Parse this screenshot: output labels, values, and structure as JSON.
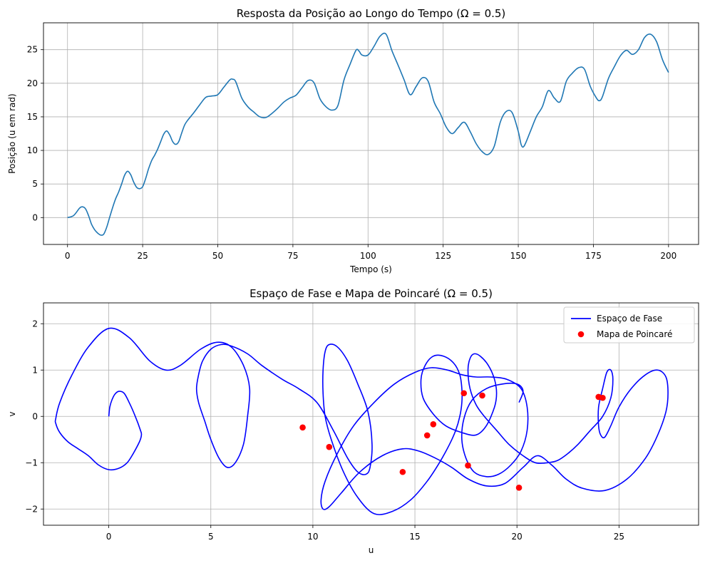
{
  "chart_data": [
    {
      "type": "line",
      "title": "Resposta da Posição ao Longo do Tempo (Ω = 0.5)",
      "xlabel": "Tempo (s)",
      "ylabel": "Posição (u em rad)",
      "xlim": [
        -8,
        210
      ],
      "ylim": [
        -4,
        29
      ],
      "xticks": [
        0,
        25,
        50,
        75,
        100,
        125,
        150,
        175,
        200
      ],
      "yticks": [
        0,
        5,
        10,
        15,
        20,
        25
      ],
      "grid": true,
      "series": [
        {
          "color": "#1f77b4",
          "x": [
            0,
            2,
            4,
            5,
            6,
            7,
            8,
            9,
            10,
            11,
            12,
            13,
            14,
            15,
            16,
            17,
            18,
            19,
            20,
            21,
            22,
            23,
            24,
            25,
            26,
            27,
            28,
            29,
            30,
            31,
            32,
            33,
            34,
            35,
            36,
            37,
            38,
            39,
            40,
            42,
            44,
            46,
            48,
            50,
            52,
            54,
            55,
            56,
            58,
            60,
            62,
            64,
            66,
            68,
            70,
            72,
            74,
            76,
            78,
            80,
            82,
            84,
            86,
            88,
            90,
            92,
            94,
            96,
            97,
            98,
            100,
            102,
            104,
            106,
            108,
            110,
            112,
            114,
            116,
            118,
            120,
            122,
            124,
            126,
            128,
            130,
            132,
            134,
            136,
            138,
            140,
            142,
            144,
            146,
            148,
            150,
            151,
            152,
            154,
            156,
            158,
            160,
            162,
            164,
            166,
            168,
            170,
            172,
            174,
            176,
            177,
            178,
            180,
            182,
            184,
            186,
            188,
            190,
            192,
            194,
            196,
            198,
            200
          ],
          "y": [
            0,
            0.3,
            1.4,
            1.6,
            1.3,
            0.3,
            -1.0,
            -1.8,
            -2.3,
            -2.6,
            -2.5,
            -1.5,
            0.0,
            1.5,
            2.8,
            3.8,
            5.0,
            6.3,
            6.9,
            6.4,
            5.3,
            4.5,
            4.3,
            4.6,
            5.8,
            7.3,
            8.5,
            9.3,
            10.2,
            11.3,
            12.4,
            12.9,
            12.3,
            11.3,
            10.9,
            11.3,
            12.6,
            13.8,
            14.5,
            15.6,
            16.8,
            17.9,
            18.1,
            18.3,
            19.4,
            20.5,
            20.6,
            20.2,
            17.8,
            16.5,
            15.7,
            15.0,
            14.9,
            15.5,
            16.3,
            17.2,
            17.8,
            18.2,
            19.3,
            20.4,
            20.1,
            17.7,
            16.5,
            16.0,
            16.7,
            20.5,
            22.8,
            24.9,
            24.8,
            24.2,
            24.2,
            25.5,
            27.0,
            27.3,
            24.8,
            22.7,
            20.5,
            18.3,
            19.5,
            20.8,
            20.3,
            17.2,
            15.5,
            13.5,
            12.5,
            13.4,
            14.2,
            12.8,
            11.0,
            9.8,
            9.4,
            10.6,
            14.2,
            15.8,
            15.6,
            12.8,
            10.8,
            10.7,
            12.8,
            15.0,
            16.5,
            18.9,
            17.8,
            17.3,
            20.3,
            21.5,
            22.3,
            22.1,
            19.5,
            17.8,
            17.4,
            18.0,
            20.7,
            22.5,
            24.1,
            24.9,
            24.3,
            25.0,
            26.8,
            27.3,
            26.2,
            23.5,
            21.6
          ]
        }
      ]
    },
    {
      "type": "line",
      "title": "Espaço de Fase e Mapa de Poincaré (Ω = 0.5)",
      "xlabel": "u",
      "ylabel": "v",
      "xlim": [
        -3.2,
        28.9
      ],
      "ylim": [
        -2.35,
        2.45
      ],
      "xticks": [
        0,
        5,
        10,
        15,
        20,
        25
      ],
      "yticks": [
        -2,
        -1,
        0,
        1,
        2
      ],
      "grid": true,
      "legend": "top-right",
      "series": [
        {
          "name": "Espaço de Fase",
          "type": "line",
          "color": "#0000ff",
          "x": [
            0,
            0.05,
            0.15,
            0.3,
            0.5,
            0.75,
            1.0,
            1.3,
            1.55,
            1.6,
            1.5,
            1.2,
            0.9,
            0.5,
            0.0,
            -0.5,
            -1.0,
            -1.5,
            -2.0,
            -2.4,
            -2.6,
            -2.6,
            -2.4,
            -1.8,
            -1.0,
            0.0,
            1.0,
            2.0,
            2.8,
            3.5,
            4.5,
            5.3,
            6.0,
            6.6,
            6.9,
            6.8,
            6.6,
            6.2,
            5.8,
            5.4,
            5.0,
            4.7,
            4.4,
            4.3,
            4.4,
            4.6,
            5.0,
            5.5,
            6.0,
            6.8,
            7.5,
            8.5,
            9.3,
            10.2,
            11.0,
            11.7,
            12.2,
            12.6,
            12.8,
            12.9,
            12.7,
            12.2,
            11.7,
            11.2,
            10.8,
            10.6,
            10.5,
            10.5,
            10.6,
            10.9,
            11.5,
            12.2,
            13.0,
            13.9,
            14.8,
            15.6,
            16.2,
            16.7,
            17.0,
            17.2,
            17.3,
            17.3,
            17.2,
            16.9,
            16.4,
            15.9,
            15.5,
            15.3,
            15.4,
            15.9,
            16.5,
            17.3,
            18.0,
            18.5,
            18.9,
            19.0,
            18.9,
            18.6,
            18.2,
            17.9,
            17.7,
            17.6,
            17.7,
            18.0,
            18.4,
            19.0,
            19.6,
            20.3,
            20.9,
            21.5,
            22.0,
            22.5,
            23.0,
            23.6,
            24.2,
            24.6,
            24.7,
            24.6,
            24.4,
            24.2,
            24.0,
            24.0,
            24.1,
            24.3,
            24.6,
            25.0,
            25.6,
            26.3,
            26.9,
            27.3,
            27.4,
            27.3,
            26.9,
            26.3,
            25.4,
            24.3,
            23.2,
            22.4,
            21.7,
            21.0,
            20.3,
            19.4,
            18.5,
            17.6,
            16.8,
            16.0,
            15.2,
            14.4,
            13.4,
            12.3,
            11.4,
            10.8,
            10.5,
            10.4,
            10.6,
            11.2,
            12.0,
            13.0,
            14.0,
            15.0,
            15.8,
            16.6,
            17.3,
            18.0,
            18.7,
            19.5,
            20.2,
            20.5,
            20.5,
            20.2,
            19.7,
            19.1,
            18.5,
            17.9,
            17.5,
            17.3,
            17.4,
            17.8,
            18.5,
            19.3,
            20.0,
            20.3,
            20.1
          ],
          "y": [
            0,
            0.2,
            0.35,
            0.48,
            0.54,
            0.5,
            0.3,
            0.0,
            -0.3,
            -0.4,
            -0.55,
            -0.8,
            -1.0,
            -1.12,
            -1.15,
            -1.05,
            -0.85,
            -0.7,
            -0.55,
            -0.35,
            -0.15,
            -0.05,
            0.3,
            0.9,
            1.5,
            1.9,
            1.7,
            1.2,
            1.0,
            1.1,
            1.45,
            1.6,
            1.5,
            1.1,
            0.6,
            0.0,
            -0.6,
            -1.0,
            -1.1,
            -0.9,
            -0.5,
            -0.1,
            0.3,
            0.6,
            0.9,
            1.2,
            1.45,
            1.55,
            1.52,
            1.35,
            1.1,
            0.8,
            0.6,
            0.3,
            -0.3,
            -0.9,
            -1.2,
            -1.25,
            -1.1,
            -0.6,
            0.1,
            0.7,
            1.2,
            1.5,
            1.55,
            1.4,
            1.0,
            0.5,
            0.0,
            -0.5,
            -1.2,
            -1.75,
            -2.1,
            -2.05,
            -1.8,
            -1.4,
            -1.0,
            -0.6,
            -0.3,
            0.0,
            0.3,
            0.6,
            0.9,
            1.15,
            1.3,
            1.3,
            1.1,
            0.8,
            0.4,
            0.05,
            -0.2,
            -0.35,
            -0.4,
            -0.2,
            0.2,
            0.5,
            0.8,
            1.1,
            1.3,
            1.35,
            1.25,
            1.0,
            0.6,
            0.25,
            0.0,
            -0.3,
            -0.6,
            -0.85,
            -1.0,
            -1.0,
            -0.95,
            -0.8,
            -0.6,
            -0.3,
            0.0,
            0.4,
            0.8,
            1.0,
            0.95,
            0.6,
            0.2,
            -0.2,
            -0.4,
            -0.45,
            -0.2,
            0.2,
            0.6,
            0.9,
            1.0,
            0.85,
            0.5,
            0.1,
            -0.4,
            -0.9,
            -1.35,
            -1.6,
            -1.55,
            -1.35,
            -1.05,
            -0.85,
            -1.1,
            -1.45,
            -1.5,
            -1.35,
            -1.1,
            -0.9,
            -0.75,
            -0.7,
            -0.85,
            -1.2,
            -1.65,
            -1.95,
            -2.0,
            -1.8,
            -1.4,
            -0.8,
            -0.2,
            0.3,
            0.7,
            0.95,
            1.05,
            1.0,
            0.9,
            0.85,
            0.85,
            0.8,
            0.6,
            0.2,
            -0.3,
            -0.75,
            -1.05,
            -1.25,
            -1.3,
            -1.2,
            -0.9,
            -0.5,
            -0.05,
            0.35,
            0.6,
            0.7,
            0.7,
            0.55,
            0.3
          ]
        },
        {
          "name": "Mapa de Poincaré",
          "type": "scatter",
          "color": "#ff0000",
          "x": [
            9.5,
            10.8,
            14.4,
            15.6,
            15.9,
            17.4,
            17.6,
            18.3,
            20.1,
            24.0,
            24.2
          ],
          "y": [
            -0.24,
            -0.66,
            -1.2,
            -0.41,
            -0.17,
            0.5,
            -1.06,
            0.45,
            -1.54,
            0.42,
            0.4
          ]
        }
      ]
    }
  ]
}
